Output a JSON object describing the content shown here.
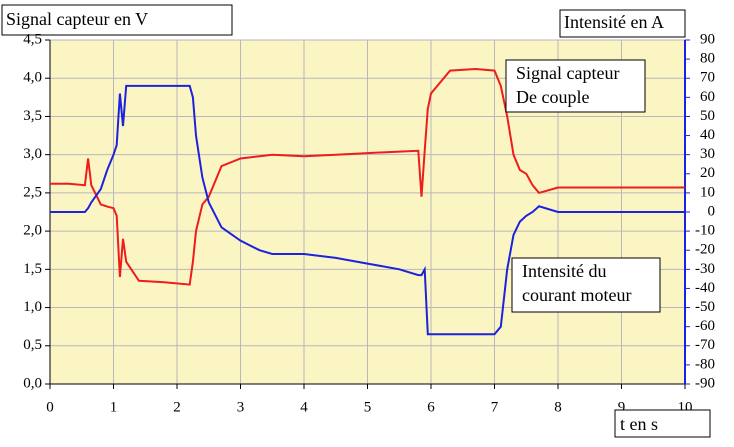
{
  "chart_data": {
    "type": "line",
    "y_label": "Signal capteur en V",
    "y2_label": "Intensité en A",
    "x_label": "t en s",
    "x": [
      0,
      0.3,
      0.55,
      0.6,
      0.65,
      0.8,
      0.9,
      1.0,
      1.05,
      1.1,
      1.15,
      1.2,
      1.4,
      1.8,
      2.2,
      2.25,
      2.3,
      2.4,
      2.5,
      2.7,
      3.0,
      3.3,
      3.5,
      4.0,
      4.5,
      5.0,
      5.5,
      5.8,
      5.85,
      5.9,
      5.95,
      6.0,
      6.1,
      6.3,
      6.7,
      7.0,
      7.1,
      7.2,
      7.3,
      7.4,
      7.5,
      7.6,
      7.7,
      8.0,
      9.2,
      10
    ],
    "xlim": [
      0,
      10
    ],
    "xticks": [
      0,
      1,
      2,
      3,
      4,
      5,
      6,
      7,
      8,
      9,
      10
    ],
    "ylim": [
      0,
      4.5
    ],
    "yticks": [
      {
        "value": 0,
        "label": "0,0"
      },
      {
        "value": 0.5,
        "label": "0,5"
      },
      {
        "value": 1,
        "label": "1,0"
      },
      {
        "value": 1.5,
        "label": "1,5"
      },
      {
        "value": 2,
        "label": "2,0"
      },
      {
        "value": 2.5,
        "label": "2,5"
      },
      {
        "value": 3,
        "label": "3,0"
      },
      {
        "value": 3.5,
        "label": "3,5"
      },
      {
        "value": 4,
        "label": "4,0"
      },
      {
        "value": 4.5,
        "label": "4,5"
      }
    ],
    "y2lim": [
      -90,
      90
    ],
    "y2ticks": [
      -90,
      -80,
      -70,
      -60,
      -50,
      -40,
      -30,
      -20,
      -10,
      0,
      10,
      20,
      30,
      40,
      50,
      60,
      70,
      80,
      90
    ],
    "grid": true,
    "series": [
      {
        "name": [
          "Signal capteur",
          "De couple"
        ],
        "color": "#ee1c1c",
        "values": [
          2.62,
          2.62,
          2.6,
          2.95,
          2.6,
          2.35,
          2.32,
          2.3,
          2.2,
          1.4,
          1.9,
          1.6,
          1.35,
          1.33,
          1.3,
          1.6,
          2.0,
          2.35,
          2.45,
          2.85,
          2.95,
          2.98,
          3.0,
          2.98,
          3.0,
          3.02,
          3.04,
          3.05,
          2.45,
          3.05,
          3.6,
          3.8,
          3.9,
          4.1,
          4.12,
          4.1,
          3.9,
          3.5,
          3.0,
          2.8,
          2.75,
          2.6,
          2.5,
          2.57,
          2.57,
          2.57
        ]
      },
      {
        "name": [
          "Intensité du",
          "courant moteur"
        ],
        "color": "#1c22dd",
        "axis": "y2",
        "values": [
          0,
          0,
          0,
          2,
          5,
          12,
          22,
          30,
          35,
          62,
          45,
          66,
          66,
          66,
          66,
          60,
          40,
          18,
          5,
          -8,
          -15,
          -20,
          -22,
          -22,
          -24,
          -27,
          -30,
          -33,
          -33,
          -30,
          -64,
          -64,
          -64,
          -64,
          -64,
          -64,
          -60,
          -30,
          -12,
          -5,
          -2,
          0,
          3,
          0,
          0,
          0
        ]
      }
    ]
  }
}
